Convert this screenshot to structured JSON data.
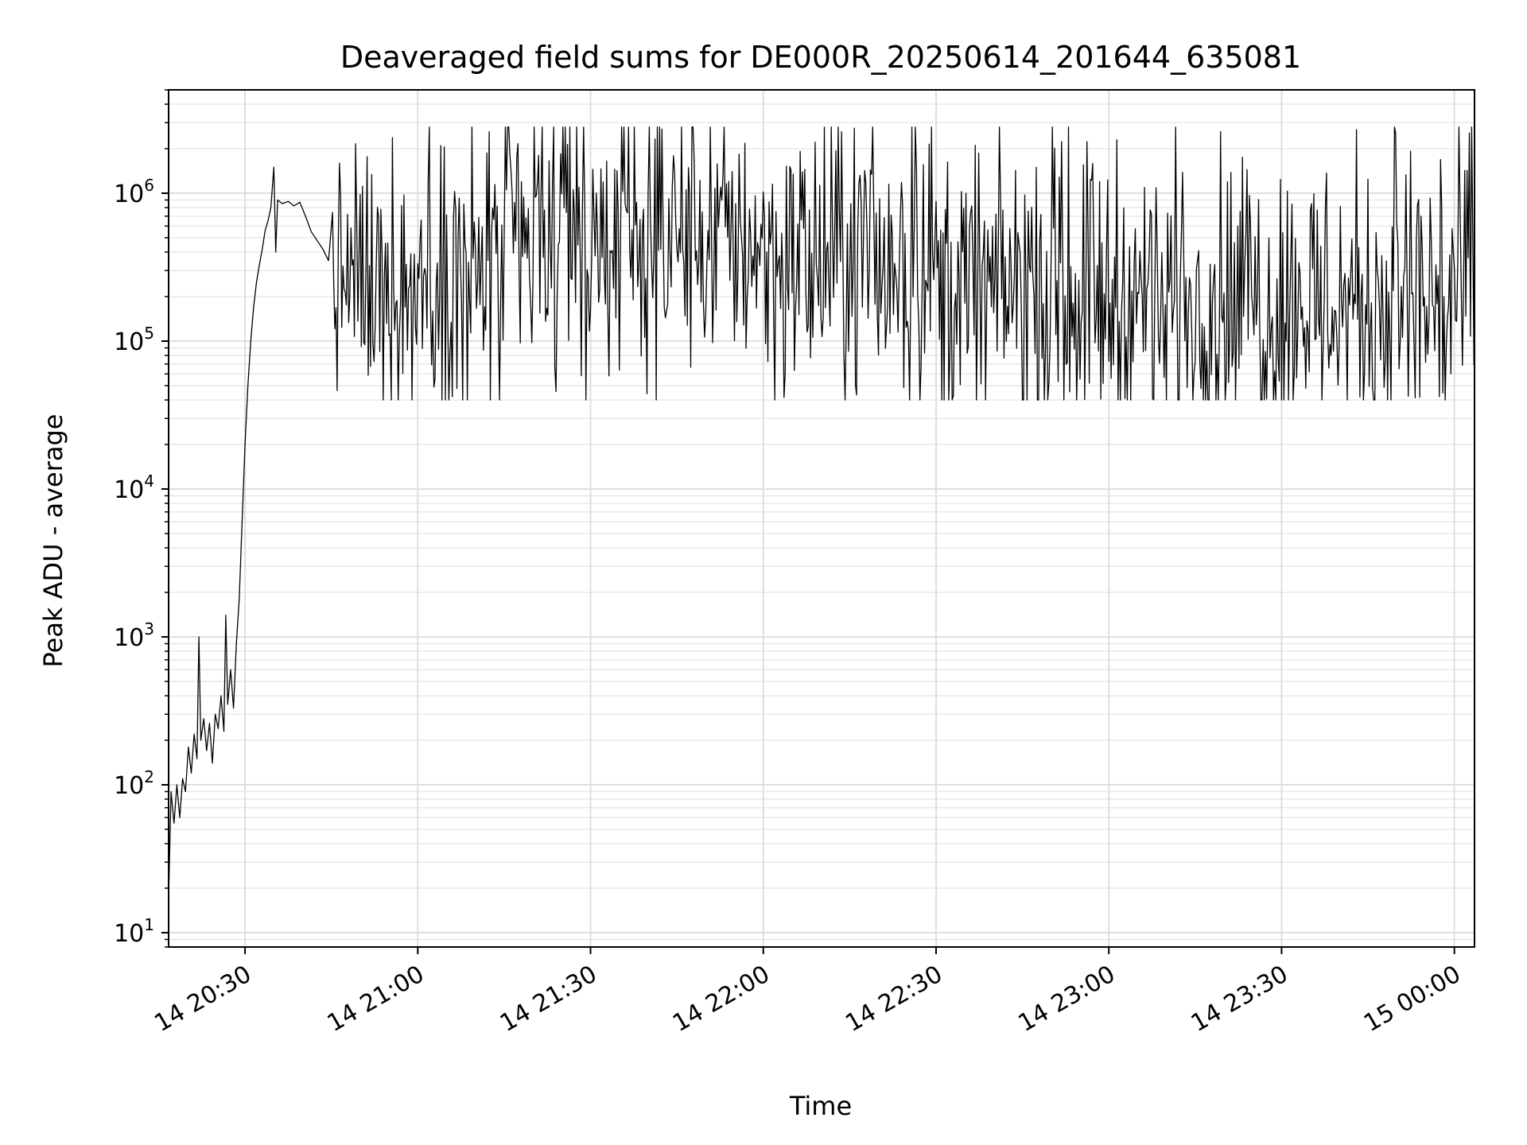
{
  "chart_data": {
    "type": "line",
    "title": "Deaveraged field sums for DE000R_20250614_201644_635081",
    "xlabel": "Time",
    "ylabel": "Peak ADU - average",
    "yscale": "log",
    "ylim": [
      8,
      5000000
    ],
    "xlim": [
      "2025-06-14 20:16:44",
      "2025-06-15 00:03:30"
    ],
    "grid": true,
    "line_color": "#000000",
    "x_ticks": [
      {
        "t": "2025-06-14 20:30:00",
        "label": "14 20:30"
      },
      {
        "t": "2025-06-14 21:00:00",
        "label": "14 21:00"
      },
      {
        "t": "2025-06-14 21:30:00",
        "label": "14 21:30"
      },
      {
        "t": "2025-06-14 22:00:00",
        "label": "14 22:00"
      },
      {
        "t": "2025-06-14 22:30:00",
        "label": "14 22:30"
      },
      {
        "t": "2025-06-14 23:00:00",
        "label": "14 23:00"
      },
      {
        "t": "2025-06-14 23:30:00",
        "label": "14 23:30"
      },
      {
        "t": "2025-06-15 00:00:00",
        "label": "15 00:00"
      }
    ],
    "y_ticks": [
      {
        "value": 10,
        "base": "10",
        "exp": "1"
      },
      {
        "value": 100,
        "base": "10",
        "exp": "2"
      },
      {
        "value": 1000,
        "base": "10",
        "exp": "3"
      },
      {
        "value": 10000,
        "base": "10",
        "exp": "4"
      },
      {
        "value": 100000,
        "base": "10",
        "exp": "5"
      },
      {
        "value": 1000000,
        "base": "10",
        "exp": "6"
      }
    ],
    "series": [
      {
        "points": [
          [
            "2025-06-14 20:16:44",
            17
          ],
          [
            "2025-06-14 20:17:10",
            90
          ],
          [
            "2025-06-14 20:17:40",
            55
          ],
          [
            "2025-06-14 20:18:10",
            100
          ],
          [
            "2025-06-14 20:18:40",
            60
          ],
          [
            "2025-06-14 20:19:10",
            110
          ],
          [
            "2025-06-14 20:19:40",
            90
          ],
          [
            "2025-06-14 20:20:10",
            180
          ],
          [
            "2025-06-14 20:20:40",
            120
          ],
          [
            "2025-06-14 20:21:10",
            220
          ],
          [
            "2025-06-14 20:21:40",
            150
          ],
          [
            "2025-06-14 20:22:00",
            1000
          ],
          [
            "2025-06-14 20:22:20",
            200
          ],
          [
            "2025-06-14 20:22:50",
            280
          ],
          [
            "2025-06-14 20:23:20",
            170
          ],
          [
            "2025-06-14 20:23:50",
            260
          ],
          [
            "2025-06-14 20:24:20",
            140
          ],
          [
            "2025-06-14 20:24:50",
            300
          ],
          [
            "2025-06-14 20:25:20",
            240
          ],
          [
            "2025-06-14 20:25:50",
            400
          ],
          [
            "2025-06-14 20:26:20",
            230
          ],
          [
            "2025-06-14 20:26:40",
            1400
          ],
          [
            "2025-06-14 20:27:00",
            350
          ],
          [
            "2025-06-14 20:27:30",
            600
          ],
          [
            "2025-06-14 20:28:00",
            330
          ],
          [
            "2025-06-14 20:28:30",
            900
          ],
          [
            "2025-06-14 20:29:00",
            1800
          ],
          [
            "2025-06-14 20:29:30",
            6000
          ],
          [
            "2025-06-14 20:30:00",
            20000
          ],
          [
            "2025-06-14 20:30:30",
            50000
          ],
          [
            "2025-06-14 20:31:00",
            100000
          ],
          [
            "2025-06-14 20:31:30",
            170000
          ],
          [
            "2025-06-14 20:32:00",
            250000
          ],
          [
            "2025-06-14 20:32:30",
            330000
          ],
          [
            "2025-06-14 20:33:00",
            420000
          ],
          [
            "2025-06-14 20:33:30",
            560000
          ],
          [
            "2025-06-14 20:34:00",
            650000
          ],
          [
            "2025-06-14 20:34:30",
            800000
          ],
          [
            "2025-06-14 20:35:00",
            1500000
          ],
          [
            "2025-06-14 20:35:20",
            400000
          ],
          [
            "2025-06-14 20:35:40",
            900000
          ],
          [
            "2025-06-14 20:36:30",
            850000
          ],
          [
            "2025-06-14 20:37:30",
            880000
          ],
          [
            "2025-06-14 20:38:30",
            820000
          ],
          [
            "2025-06-14 20:39:30",
            870000
          ],
          [
            "2025-06-14 20:40:30",
            700000
          ],
          [
            "2025-06-14 20:41:30",
            550000
          ],
          [
            "2025-06-14 20:42:30",
            480000
          ],
          [
            "2025-06-14 20:43:30",
            420000
          ],
          [
            "2025-06-14 20:44:30",
            350000
          ],
          [
            "2025-06-14 20:45:00",
            600000
          ]
        ],
        "noise_band": {
          "start": "2025-06-14 20:45:00",
          "end": "2025-06-15 00:03:30",
          "step_seconds": 12,
          "segments": [
            {
              "until": "2025-06-14 21:00:00",
              "median": 260000,
              "spread": 0.45
            },
            {
              "until": "2025-06-14 21:15:00",
              "median": 260000,
              "spread": 0.55
            },
            {
              "until": "2025-06-14 21:30:00",
              "median": 420000,
              "spread": 0.5
            },
            {
              "until": "2025-06-14 22:00:00",
              "median": 500000,
              "spread": 0.45
            },
            {
              "until": "2025-06-14 22:30:00",
              "median": 350000,
              "spread": 0.5
            },
            {
              "until": "2025-06-14 23:00:00",
              "median": 220000,
              "spread": 0.5
            },
            {
              "until": "2025-06-14 23:45:00",
              "median": 190000,
              "spread": 0.5
            },
            {
              "until": "2025-06-15 00:03:30",
              "median": 200000,
              "spread": 0.6
            }
          ],
          "min_clip": 40000,
          "max_clip": 2800000
        }
      }
    ]
  }
}
